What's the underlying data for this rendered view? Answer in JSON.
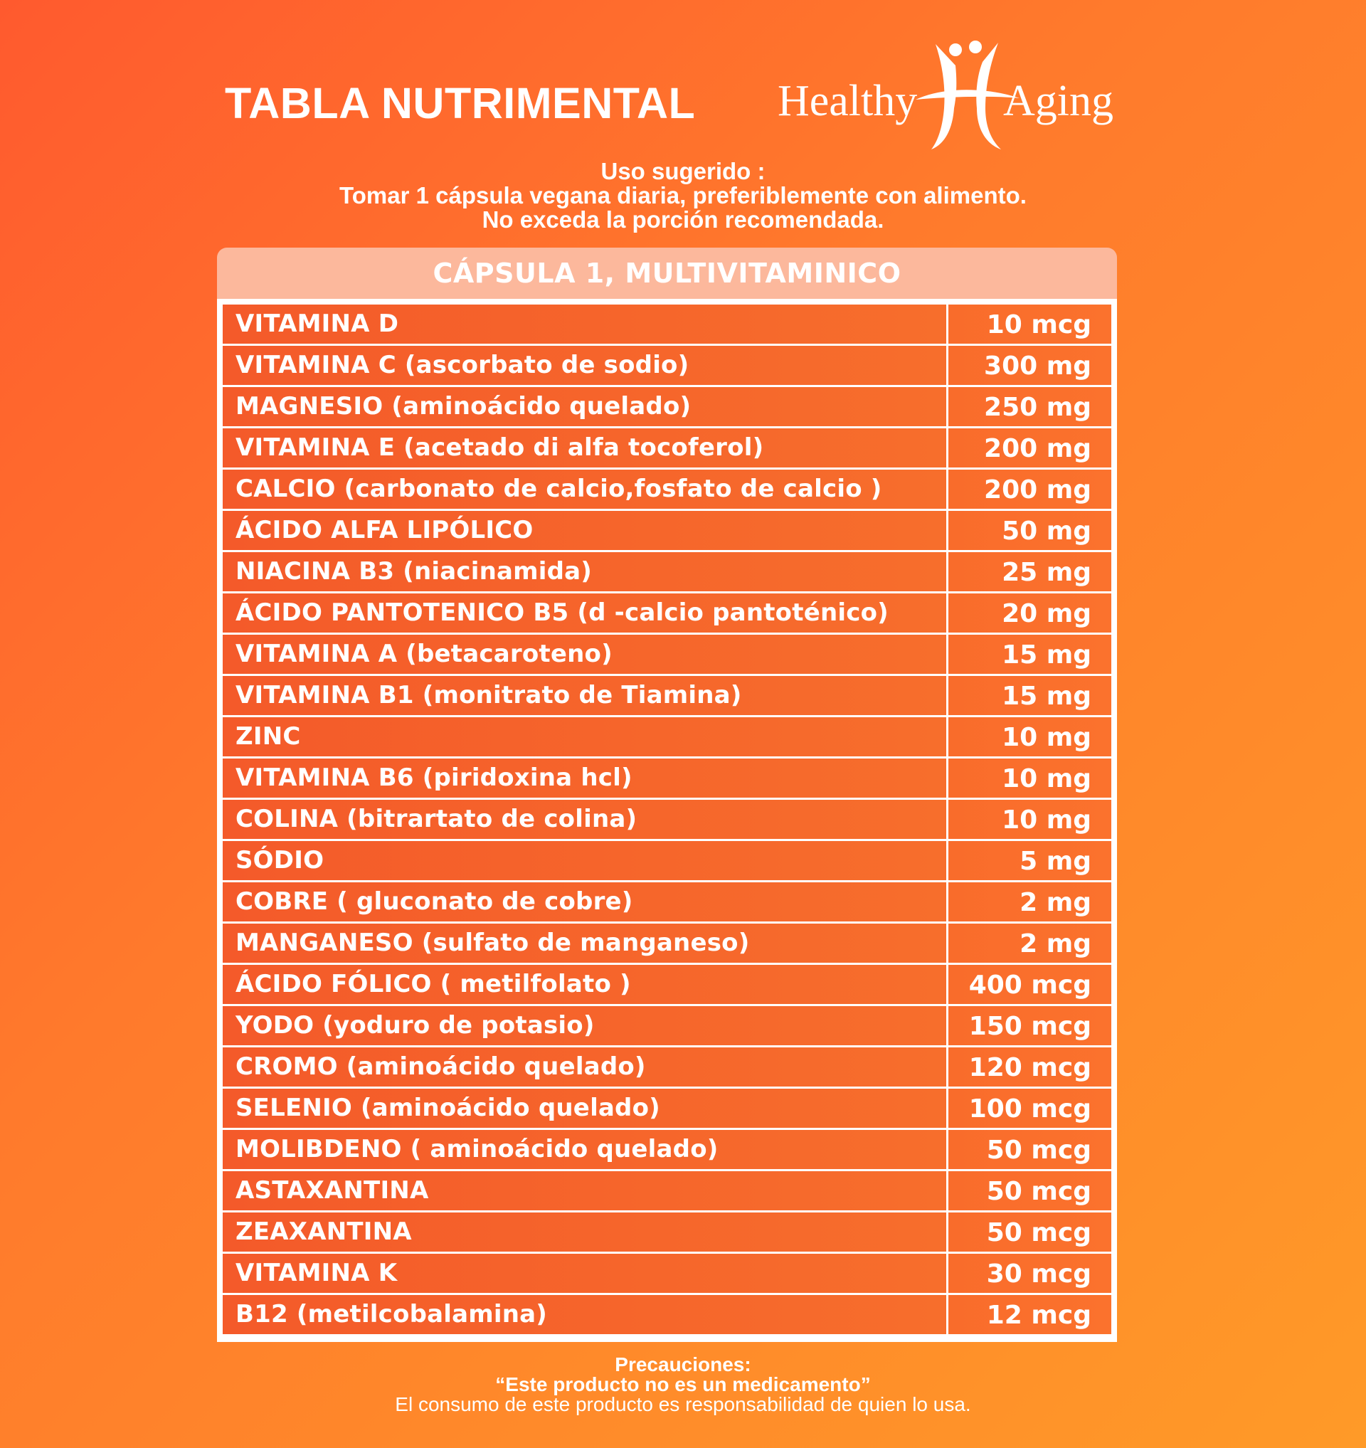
{
  "header": {
    "title": "TABLA NUTRIMENTAL",
    "brand_left": "Healthy",
    "brand_right": "Aging"
  },
  "usage": {
    "title": "Uso sugerido :",
    "line1": "Tomar 1 cápsula vegana diaria, preferiblemente con alimento.",
    "line2": "No exceda la porción recomendada."
  },
  "table": {
    "heading": "CÁPSULA 1,  MULTIVITAMINICO",
    "rows": [
      {
        "name": "VITAMINA D",
        "amount": "10 mcg"
      },
      {
        "name": "VITAMINA C (ascorbato de sodio)",
        "amount": "300 mg"
      },
      {
        "name": "MAGNESIO (aminoácido quelado)",
        "amount": "250 mg"
      },
      {
        "name": "VITAMINA E (acetado di alfa tocoferol)",
        "amount": "200 mg"
      },
      {
        "name": "CALCIO (carbonato de calcio,fosfato de calcio )",
        "amount": "200 mg"
      },
      {
        "name": "ÁCIDO ALFA LIPÓLICO",
        "amount": "50 mg"
      },
      {
        "name": "NIACINA B3 (niacinamida)",
        "amount": "25 mg"
      },
      {
        "name": "ÁCIDO PANTOTENICO B5 (d -calcio pantoténico)",
        "amount": "20 mg"
      },
      {
        "name": "VITAMINA A (betacaroteno)",
        "amount": "15 mg"
      },
      {
        "name": "VITAMINA B1 (monitrato de Tiamina)",
        "amount": "15 mg"
      },
      {
        "name": "ZINC",
        "amount": "10 mg"
      },
      {
        "name": "VITAMINA B6 (piridoxina hcl)",
        "amount": "10 mg"
      },
      {
        "name": "COLINA  (bitrartato de colina)",
        "amount": "10 mg"
      },
      {
        "name": "SÓDIO",
        "amount": "5 mg"
      },
      {
        "name": "COBRE ( gluconato de cobre)",
        "amount": "2 mg"
      },
      {
        "name": "MANGANESO (sulfato de manganeso)",
        "amount": "2 mg"
      },
      {
        "name": "ÁCIDO FÓLICO ( metilfolato )",
        "amount": "400 mcg"
      },
      {
        "name": "YODO (yoduro de potasio)",
        "amount": "150 mcg"
      },
      {
        "name": "CROMO (aminoácido  quelado)",
        "amount": "120 mcg"
      },
      {
        "name": "SELENIO (aminoácido quelado)",
        "amount": "100 mcg"
      },
      {
        "name": "MOLIBDENO  ( aminoácido quelado)",
        "amount": "50 mcg"
      },
      {
        "name": "ASTAXANTINA",
        "amount": "50 mcg"
      },
      {
        "name": "ZEAXANTINA",
        "amount": "50 mcg"
      },
      {
        "name": "VITAMINA K",
        "amount": "30 mcg"
      },
      {
        "name": "B12 (metilcobalamina)",
        "amount": "12 mcg"
      }
    ]
  },
  "notes": {
    "title": "Precauciones:",
    "quote": "“Este producto no es un medicamento”",
    "text": "El consumo de este producto es responsabilidad de quien lo usa."
  },
  "colors": {
    "background_start": "#ff5a2e",
    "background_end": "#ff9a28",
    "table_header": "#fcb89c",
    "grid_lines": "#ffffff",
    "text": "#ffffff"
  },
  "icons": {
    "brand_mark": "healthy-aging-figures-logo"
  }
}
